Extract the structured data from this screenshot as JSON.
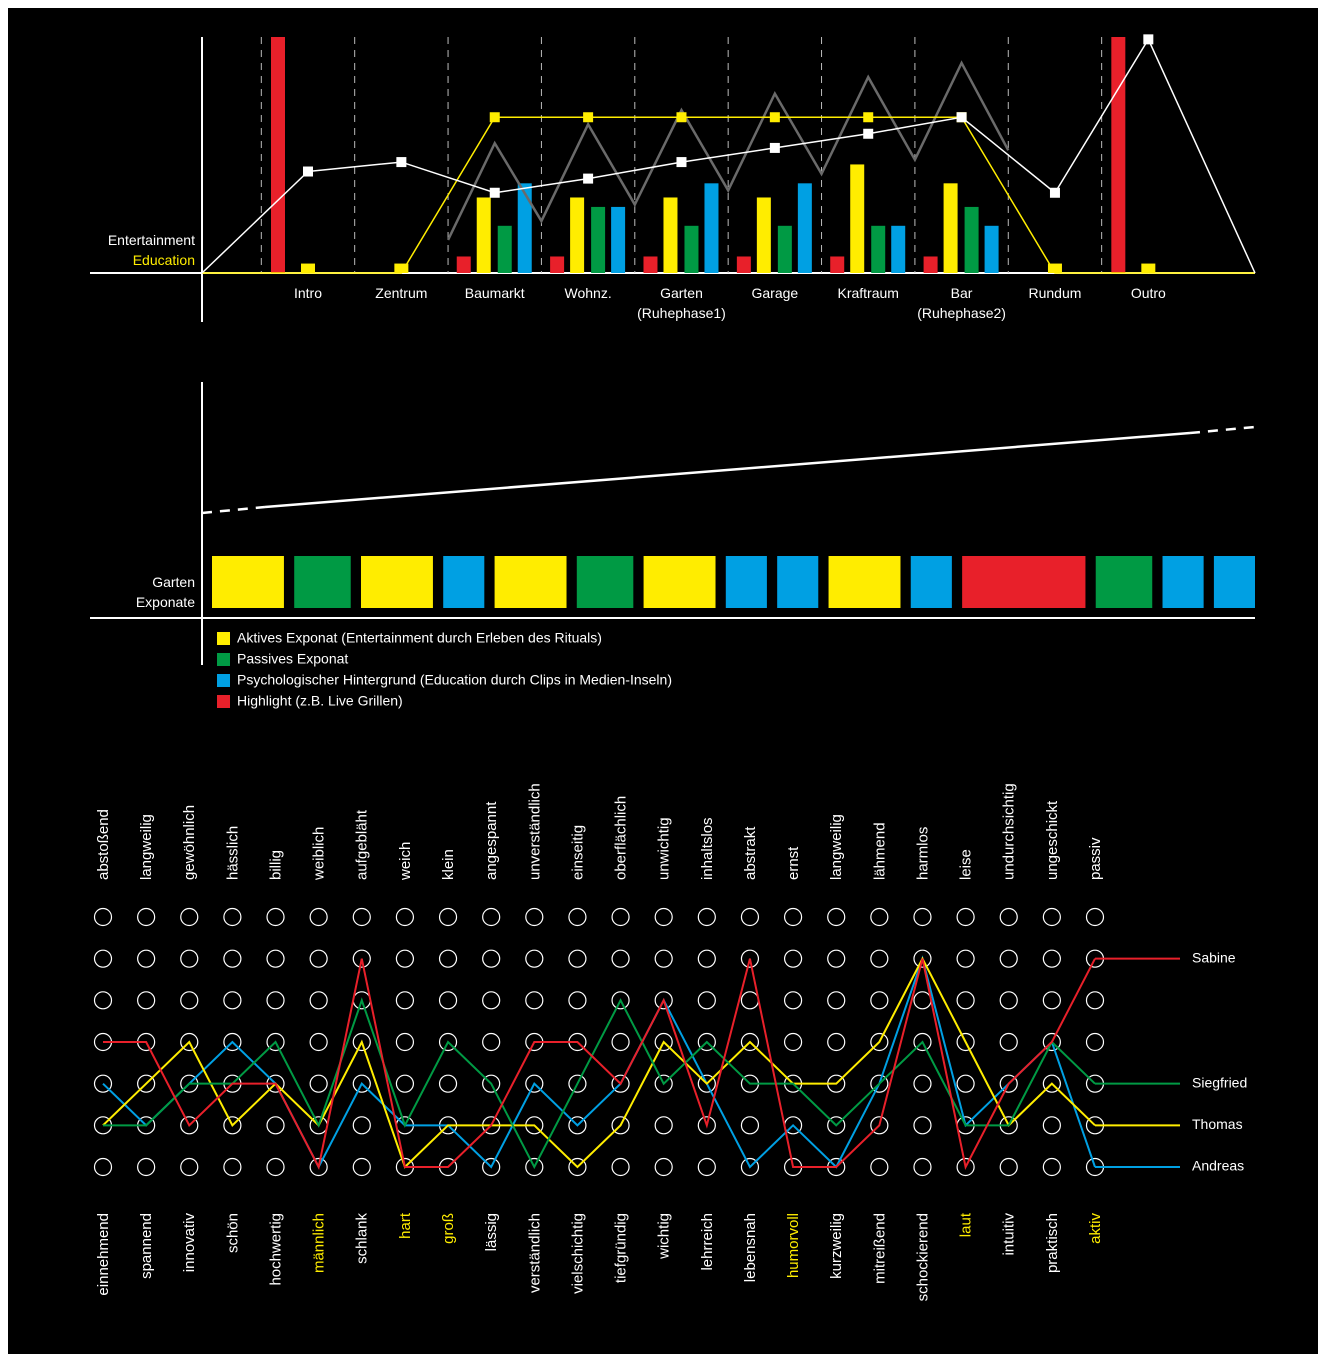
{
  "chart_data": [
    {
      "type": "combo",
      "categories": [
        "Intro",
        "Zentrum",
        "Baumarkt",
        "Wohnz.",
        "Garten\n(Ruhephase1)",
        "Garage",
        "Kraftraum",
        "Bar\n(Ruhephase2)",
        "Rundum",
        "Outro"
      ],
      "ylim": [
        0,
        100
      ],
      "series": [
        {
          "type": "line",
          "color": "#6a6a6a",
          "x": [
            1.5,
            2,
            2.5,
            3,
            3.5,
            4,
            4.5,
            5,
            5.5,
            6,
            6.5,
            7,
            7.5
          ],
          "values": [
            14,
            55,
            22,
            63,
            29,
            69,
            35,
            76,
            42,
            83,
            48,
            89,
            52
          ]
        },
        {
          "type": "bar",
          "color": "#e8202a",
          "values": [
            100,
            null,
            7,
            7,
            7,
            7,
            7,
            7,
            null,
            100
          ]
        },
        {
          "type": "bar",
          "color": "#ffed00",
          "values": [
            4,
            4,
            32,
            32,
            32,
            32,
            46,
            38,
            4,
            4
          ]
        },
        {
          "type": "bar",
          "color": "#009a44",
          "values": [
            null,
            null,
            20,
            28,
            20,
            20,
            20,
            28,
            null,
            null
          ]
        },
        {
          "type": "bar",
          "color": "#00a0e3",
          "values": [
            null,
            null,
            38,
            28,
            38,
            38,
            20,
            20,
            null,
            null
          ]
        },
        {
          "type": "line",
          "name": "Education",
          "color": "#ffed00",
          "values": [
            0,
            0,
            66,
            66,
            66,
            66,
            66,
            66,
            0,
            0
          ]
        },
        {
          "type": "line",
          "name": "Entertainment",
          "color": "#ffffff",
          "values": [
            43,
            47,
            34,
            40,
            47,
            53,
            59,
            66,
            34,
            99
          ]
        }
      ]
    },
    {
      "type": "timeline",
      "label": "Garten\nExponate",
      "series": [
        {
          "name": "Aktives Exponat (Entertainment durch Erleben des Rituals)",
          "color": "#ffed00"
        },
        {
          "name": "Passives Exponat",
          "color": "#009a44"
        },
        {
          "name": "Psychologischer Hintergrund (Education durch Clips in Medien-Inseln)",
          "color": "#00a0e3"
        },
        {
          "name": "Highlight (z.B. Live Grillen)",
          "color": "#e8202a"
        }
      ],
      "blocks": [
        {
          "color": "#ffed00",
          "length": 7
        },
        {
          "color": "#009a44",
          "length": 5.5
        },
        {
          "color": "#ffed00",
          "length": 7
        },
        {
          "color": "#00a0e3",
          "length": 4
        },
        {
          "color": "#ffed00",
          "length": 7
        },
        {
          "color": "#009a44",
          "length": 5.5
        },
        {
          "color": "#ffed00",
          "length": 7
        },
        {
          "color": "#00a0e3",
          "length": 4
        },
        {
          "color": "#00a0e3",
          "length": 4
        },
        {
          "color": "#ffed00",
          "length": 7
        },
        {
          "color": "#00a0e3",
          "length": 4
        },
        {
          "color": "#e8202a",
          "length": 12
        },
        {
          "color": "#009a44",
          "length": 5.5
        },
        {
          "color": "#00a0e3",
          "length": 4
        },
        {
          "color": "#00a0e3",
          "length": 4
        }
      ]
    },
    {
      "type": "semantic-differential",
      "opposites": [
        "abstoßend",
        "langweilig",
        "gewöhnlich",
        "hässlich",
        "billig",
        "weiblich",
        "aufgebläht",
        "weich",
        "klein",
        "angespannt",
        "unverständlich",
        "einseitig",
        "oberflächlich",
        "unwichtig",
        "inhaltslos",
        "abstrakt",
        "ernst",
        "langweilig",
        "lähmend",
        "harmlos",
        "leise",
        "undurchsichtig",
        "ungeschickt",
        "passiv"
      ],
      "categories": [
        "einnehmend",
        "spannend",
        "innovativ",
        "schön",
        "hochwertig",
        "männlich",
        "schlank",
        "hart",
        "groß",
        "lässig",
        "verständlich",
        "vielschichtig",
        "tiefgründig",
        "wichtig",
        "lehrreich",
        "lebensnah",
        "humorvoll",
        "kurzweilig",
        "mitreißend",
        "schockierend",
        "laut",
        "intuitiv",
        "praktisch",
        "aktiv"
      ],
      "highlight": [
        5,
        7,
        8,
        16,
        20,
        23
      ],
      "highlight_color": "#ffed00",
      "ylim": [
        1,
        7
      ],
      "yticks": [
        1,
        2,
        3,
        4,
        5,
        6,
        7
      ],
      "series": [
        {
          "name": "Sabine",
          "color": "#e8202a",
          "values": [
            4,
            4,
            2,
            3,
            3,
            1,
            6,
            1,
            1,
            2,
            4,
            4,
            3,
            5,
            2,
            6,
            1,
            1,
            2,
            6,
            1,
            3,
            4,
            6
          ]
        },
        {
          "name": "Siegfried",
          "color": "#009a44",
          "values": [
            2,
            2,
            3,
            3,
            4,
            2,
            5,
            2,
            4,
            3,
            1,
            3,
            5,
            3,
            4,
            3,
            3,
            2,
            3,
            4,
            2,
            2,
            4,
            3
          ]
        },
        {
          "name": "Thomas",
          "color": "#ffed00",
          "values": [
            2,
            3,
            4,
            2,
            3,
            2,
            4,
            1,
            2,
            2,
            2,
            1,
            2,
            4,
            3,
            4,
            3,
            3,
            4,
            6,
            4,
            2,
            3,
            2
          ]
        },
        {
          "name": "Andreas",
          "color": "#00a0e3",
          "values": [
            3,
            2,
            3,
            4,
            3,
            1,
            3,
            2,
            2,
            1,
            3,
            2,
            3,
            5,
            3,
            1,
            2,
            1,
            3,
            6,
            2,
            3,
            4,
            1
          ]
        }
      ]
    }
  ]
}
